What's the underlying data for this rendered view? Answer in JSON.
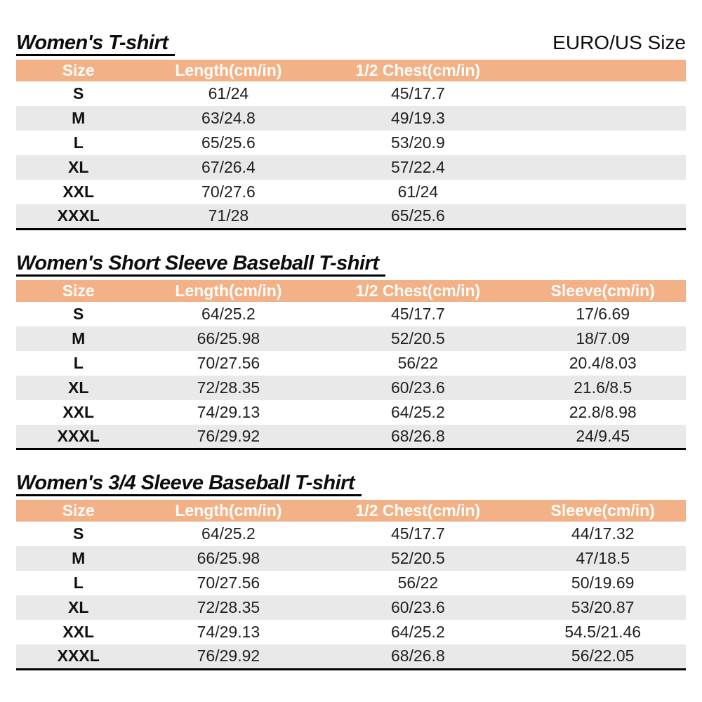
{
  "header": {
    "size_standard_label": "EURO/US Size"
  },
  "colors": {
    "header_bg": "#F2B186",
    "row_alt_bg": "#E9E9E9",
    "header_text": "#FFFDFB",
    "text": "#1F1F1F"
  },
  "tables": [
    {
      "title": "Women's T-shirt",
      "columns": [
        "Size",
        "Length(cm/in)",
        "1/2 Chest(cm/in)",
        ""
      ],
      "rows": [
        [
          "S",
          "61/24",
          "45/17.7",
          ""
        ],
        [
          "M",
          "63/24.8",
          "49/19.3",
          ""
        ],
        [
          "L",
          "65/25.6",
          "53/20.9",
          ""
        ],
        [
          "XL",
          "67/26.4",
          "57/22.4",
          ""
        ],
        [
          "XXL",
          "70/27.6",
          "61/24",
          ""
        ],
        [
          "XXXL",
          "71/28",
          "65/25.6",
          ""
        ]
      ]
    },
    {
      "title": "Women's Short Sleeve Baseball T-shirt",
      "columns": [
        "Size",
        "Length(cm/in)",
        "1/2 Chest(cm/in)",
        "Sleeve(cm/in)"
      ],
      "rows": [
        [
          "S",
          "64/25.2",
          "45/17.7",
          "17/6.69"
        ],
        [
          "M",
          "66/25.98",
          "52/20.5",
          "18/7.09"
        ],
        [
          "L",
          "70/27.56",
          "56/22",
          "20.4/8.03"
        ],
        [
          "XL",
          "72/28.35",
          "60/23.6",
          "21.6/8.5"
        ],
        [
          "XXL",
          "74/29.13",
          "64/25.2",
          "22.8/8.98"
        ],
        [
          "XXXL",
          "76/29.92",
          "68/26.8",
          "24/9.45"
        ]
      ]
    },
    {
      "title": "Women's 3/4 Sleeve Baseball T-shirt",
      "columns": [
        "Size",
        "Length(cm/in)",
        "1/2 Chest(cm/in)",
        "Sleeve(cm/in)"
      ],
      "rows": [
        [
          "S",
          "64/25.2",
          "45/17.7",
          "44/17.32"
        ],
        [
          "M",
          "66/25.98",
          "52/20.5",
          "47/18.5"
        ],
        [
          "L",
          "70/27.56",
          "56/22",
          "50/19.69"
        ],
        [
          "XL",
          "72/28.35",
          "60/23.6",
          "53/20.87"
        ],
        [
          "XXL",
          "74/29.13",
          "64/25.2",
          "54.5/21.46"
        ],
        [
          "XXXL",
          "76/29.92",
          "68/26.8",
          "56/22.05"
        ]
      ]
    }
  ]
}
